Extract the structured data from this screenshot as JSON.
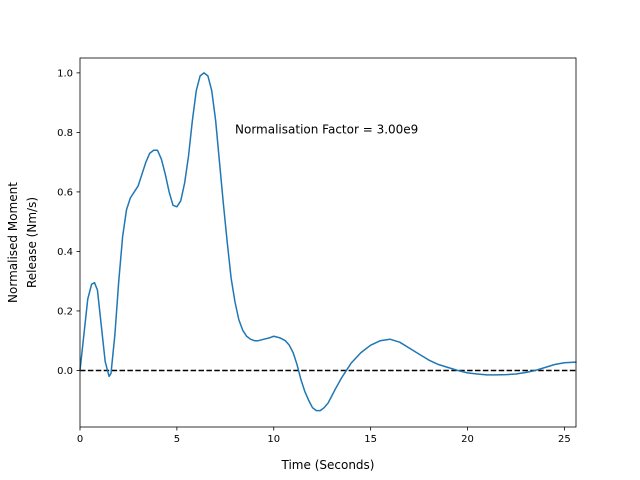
{
  "chart_data": {
    "type": "line",
    "title": "",
    "xlabel": "Time (Seconds)",
    "ylabel_lines": [
      "Normalised Moment",
      "Release (Nm/s)"
    ],
    "xlim": [
      0,
      25.6
    ],
    "ylim": [
      -0.19,
      1.05
    ],
    "xticks": [
      0,
      5,
      10,
      15,
      20,
      25
    ],
    "yticks": [
      0.0,
      0.2,
      0.4,
      0.6,
      0.8,
      1.0
    ],
    "ytick_labels": [
      "0.0",
      "0.2",
      "0.4",
      "0.6",
      "0.8",
      "1.0"
    ],
    "grid": false,
    "annotation": {
      "text": "Normalisation Factor = 3.00e9",
      "x": 8.0,
      "y": 0.81
    },
    "reference_line": {
      "y": 0.0,
      "style": "dashed",
      "color": "#000000"
    },
    "series": [
      {
        "color": "#1f77b4",
        "x": [
          0,
          0.2,
          0.4,
          0.6,
          0.75,
          0.9,
          1.1,
          1.3,
          1.5,
          1.6,
          1.8,
          2.0,
          2.2,
          2.4,
          2.6,
          2.8,
          3.0,
          3.2,
          3.4,
          3.6,
          3.8,
          4.0,
          4.2,
          4.4,
          4.6,
          4.8,
          5.0,
          5.2,
          5.4,
          5.6,
          5.8,
          6.0,
          6.2,
          6.4,
          6.6,
          6.8,
          7.0,
          7.2,
          7.4,
          7.6,
          7.8,
          8.0,
          8.2,
          8.4,
          8.6,
          8.8,
          9.0,
          9.2,
          9.5,
          9.8,
          10.0,
          10.3,
          10.6,
          10.8,
          11.0,
          11.2,
          11.4,
          11.6,
          11.8,
          12.0,
          12.2,
          12.4,
          12.6,
          12.8,
          13.0,
          13.2,
          13.5,
          13.8,
          14.0,
          14.5,
          15.0,
          15.5,
          16.0,
          16.5,
          17.0,
          17.5,
          18.0,
          18.5,
          19.0,
          19.5,
          20.0,
          20.5,
          21.0,
          21.5,
          22.0,
          22.5,
          23.0,
          23.5,
          24.0,
          24.5,
          25.0,
          25.6
        ],
        "y": [
          0.0,
          0.12,
          0.24,
          0.29,
          0.295,
          0.27,
          0.15,
          0.03,
          -0.02,
          -0.01,
          0.12,
          0.3,
          0.45,
          0.54,
          0.58,
          0.6,
          0.62,
          0.66,
          0.7,
          0.73,
          0.74,
          0.74,
          0.71,
          0.66,
          0.6,
          0.555,
          0.55,
          0.57,
          0.63,
          0.72,
          0.84,
          0.94,
          0.99,
          1.0,
          0.99,
          0.94,
          0.84,
          0.7,
          0.56,
          0.43,
          0.31,
          0.23,
          0.17,
          0.135,
          0.115,
          0.105,
          0.1,
          0.1,
          0.105,
          0.11,
          0.115,
          0.11,
          0.1,
          0.085,
          0.06,
          0.02,
          -0.03,
          -0.07,
          -0.1,
          -0.125,
          -0.135,
          -0.135,
          -0.125,
          -0.11,
          -0.085,
          -0.06,
          -0.025,
          0.005,
          0.025,
          0.06,
          0.085,
          0.1,
          0.105,
          0.095,
          0.075,
          0.055,
          0.035,
          0.02,
          0.01,
          0.0,
          -0.008,
          -0.012,
          -0.015,
          -0.015,
          -0.014,
          -0.012,
          -0.007,
          0.0,
          0.01,
          0.02,
          0.026,
          0.028
        ]
      }
    ]
  }
}
